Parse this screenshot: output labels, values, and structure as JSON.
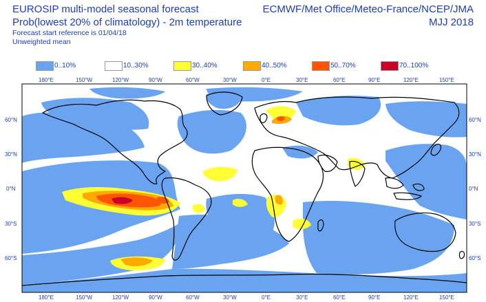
{
  "header": {
    "title_line1": "EUROSIP multi-model seasonal forecast",
    "title_line2": "Prob(lowest 20% of climatology) - 2m temperature",
    "start_reference": "Forecast start reference is 01/04/18",
    "weighting": "Unweighted mean",
    "centres": "ECMWF/Met Office/Meteo-France/NCEP/JMA",
    "season": "MJJ 2018"
  },
  "legend": [
    {
      "label": "0..10%",
      "color": "#6aa4f0"
    },
    {
      "label": "10..30%",
      "color": "#ffffff"
    },
    {
      "label": "30..40%",
      "color": "#ffff33"
    },
    {
      "label": "40..50%",
      "color": "#ffaa00"
    },
    {
      "label": "50..70%",
      "color": "#ff5500"
    },
    {
      "label": "70..100%",
      "color": "#c8002a"
    }
  ],
  "axes": {
    "lon_labels": [
      "180°E",
      "150°W",
      "120°W",
      "90°W",
      "60°W",
      "30°W",
      "0°E",
      "30°E",
      "60°E",
      "90°E",
      "120°E",
      "150°E"
    ],
    "lat_labels": [
      "60°N",
      "30°N",
      "0°N",
      "30°S",
      "60°S"
    ]
  },
  "colors": {
    "text": "#1a3cc8",
    "low": "#6aa4f0",
    "neutral": "#ffffff",
    "p30": "#ffff33",
    "p40": "#ffaa00",
    "p50": "#ff5500",
    "p70": "#c8002a",
    "coast": "#000000"
  }
}
